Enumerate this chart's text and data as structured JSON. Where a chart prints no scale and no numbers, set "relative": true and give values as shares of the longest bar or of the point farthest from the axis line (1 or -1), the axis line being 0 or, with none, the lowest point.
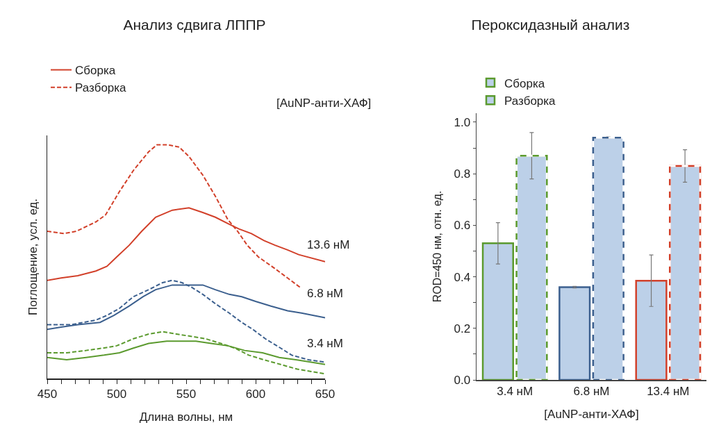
{
  "chart_data": [
    {
      "type": "line",
      "title": "Анализ сдвига ЛППР",
      "xlabel": "Длина волны, нм",
      "ylabel": "Поглощение, усл. ед.",
      "relative": true,
      "legend": "top left",
      "grid": false,
      "xlim": [
        450,
        650
      ],
      "xticks": [
        450,
        {
          "value": 460,
          "label": null
        },
        {
          "value": 470,
          "label": null
        },
        {
          "value": 480,
          "label": null
        },
        {
          "value": 490,
          "label": null
        },
        500,
        {
          "value": 510,
          "label": null
        },
        {
          "value": 520,
          "label": null
        },
        {
          "value": 530,
          "label": null
        },
        {
          "value": 540,
          "label": null
        },
        550,
        {
          "value": 560,
          "label": null
        },
        {
          "value": 570,
          "label": null
        },
        {
          "value": 580,
          "label": null
        },
        {
          "value": 590,
          "label": null
        },
        600,
        {
          "value": 610,
          "label": null
        },
        {
          "value": 620,
          "label": null
        },
        {
          "value": 630,
          "label": null
        },
        {
          "value": 640,
          "label": null
        },
        650
      ],
      "annotations": [
        "[AuNP-анти-ХАФ]",
        "13.6 нМ",
        "6.8 нМ",
        "3.4 нМ"
      ],
      "series": [
        {
          "name": "Сборка",
          "color": "#d2402a",
          "line_style": "solid",
          "x": [
            450,
            460,
            472,
            485,
            493,
            500,
            509,
            518,
            528,
            540,
            552,
            562,
            571,
            581,
            588,
            597,
            606,
            614,
            623,
            631,
            650
          ],
          "values": [
            0.42,
            0.43,
            0.44,
            0.46,
            0.48,
            0.52,
            0.57,
            0.63,
            0.69,
            0.72,
            0.73,
            0.71,
            0.69,
            0.66,
            0.64,
            0.62,
            0.59,
            0.57,
            0.55,
            0.53,
            0.5
          ]
        },
        {
          "name": "Разборка",
          "color": "#d2402a",
          "line_style": "dashed",
          "x": [
            450,
            462,
            471,
            485,
            492,
            502,
            512,
            523,
            529,
            537,
            545,
            552,
            562,
            571,
            580,
            587,
            594,
            602,
            614,
            623,
            632
          ],
          "values": [
            0.63,
            0.62,
            0.63,
            0.67,
            0.7,
            0.8,
            0.89,
            0.97,
            1.0,
            1.0,
            0.99,
            0.95,
            0.87,
            0.78,
            0.68,
            0.63,
            0.57,
            0.52,
            0.47,
            0.43,
            0.39
          ]
        },
        {
          "color": "#3b5f8e",
          "line_style": "solid",
          "x": [
            450,
            460,
            472,
            488,
            498,
            509,
            519,
            528,
            540,
            552,
            562,
            571,
            581,
            590,
            600,
            611,
            623,
            633,
            650
          ],
          "values": [
            0.21,
            0.22,
            0.23,
            0.24,
            0.27,
            0.31,
            0.35,
            0.38,
            0.4,
            0.4,
            0.4,
            0.38,
            0.36,
            0.35,
            0.33,
            0.31,
            0.29,
            0.28,
            0.26
          ]
        },
        {
          "color": "#3b5f8e",
          "line_style": "dashed",
          "x": [
            450,
            467,
            485,
            493,
            502,
            512,
            523,
            533,
            540,
            547,
            554,
            562,
            571,
            581,
            590,
            598,
            607,
            618,
            626,
            638,
            650
          ],
          "values": [
            0.23,
            0.23,
            0.25,
            0.27,
            0.3,
            0.35,
            0.38,
            0.41,
            0.42,
            0.41,
            0.39,
            0.36,
            0.32,
            0.28,
            0.24,
            0.21,
            0.17,
            0.13,
            0.1,
            0.08,
            0.07
          ]
        },
        {
          "color": "#5b9a2e",
          "line_style": "solid",
          "x": [
            450,
            464,
            478,
            491,
            502,
            512,
            523,
            536,
            547,
            557,
            568,
            580,
            592,
            605,
            617,
            629,
            640,
            650
          ],
          "values": [
            0.09,
            0.08,
            0.09,
            0.1,
            0.11,
            0.13,
            0.15,
            0.16,
            0.16,
            0.16,
            0.15,
            0.14,
            0.12,
            0.11,
            0.09,
            0.08,
            0.07,
            0.06
          ]
        },
        {
          "color": "#5b9a2e",
          "line_style": "dashed",
          "x": [
            450,
            464,
            478,
            490,
            500,
            512,
            523,
            533,
            543,
            554,
            564,
            575,
            585,
            595,
            606,
            618,
            630,
            640,
            650
          ],
          "values": [
            0.11,
            0.11,
            0.12,
            0.13,
            0.14,
            0.17,
            0.19,
            0.2,
            0.19,
            0.18,
            0.17,
            0.15,
            0.13,
            0.1,
            0.08,
            0.06,
            0.04,
            0.03,
            0.02
          ]
        }
      ]
    },
    {
      "type": "bar",
      "title": "Пероксидазный анализ",
      "xlabel": "[AuNP-анти-ХАФ]",
      "ylabel": "ROD=450 нм, отн. ед.",
      "legend": "top left",
      "grid": false,
      "categories": [
        "3.4 нМ",
        "6.8 нМ",
        "13.4 нМ"
      ],
      "ylim": [
        0,
        1.035
      ],
      "yticks": [
        {
          "value": 0,
          "label": "0.0"
        },
        {
          "value": 0.1,
          "label": null
        },
        {
          "value": 0.2,
          "label": "0.2"
        },
        {
          "value": 0.3,
          "label": null
        },
        {
          "value": 0.4,
          "label": "0.4"
        },
        {
          "value": 0.5,
          "label": null
        },
        {
          "value": 0.6,
          "label": "0.6"
        },
        {
          "value": 0.7,
          "label": null
        },
        {
          "value": 0.8,
          "label": "0.8"
        },
        {
          "value": 0.9,
          "label": null
        },
        {
          "value": 1.0,
          "label": "1.0"
        }
      ],
      "series": [
        {
          "name": "Сборка",
          "color": "#bcd0e8",
          "colors": [
            "#5b9a2e",
            "#3b5f8e",
            "#d2402a"
          ],
          "line_style": "solid",
          "values": [
            0.53,
            0.36,
            0.385
          ],
          "errors": [
            0.08,
            0.003,
            0.1
          ]
        },
        {
          "name": "Разборка",
          "color": "#bcd0e8",
          "colors": [
            "#5b9a2e",
            "#3b5f8e",
            "#d2402a"
          ],
          "line_style": "dashed",
          "values": [
            0.87,
            0.94,
            0.83
          ],
          "errors": [
            0.09,
            0.003,
            0.063
          ]
        }
      ]
    }
  ]
}
